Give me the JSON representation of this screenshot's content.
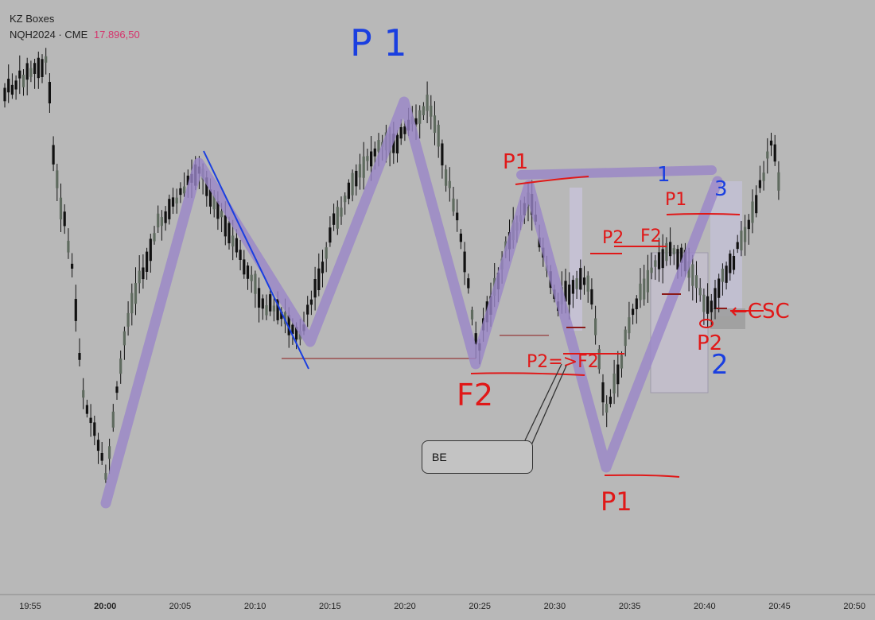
{
  "header": {
    "title": "KZ Boxes",
    "symbol": "NQH2024 · CME",
    "price": "17.896,50"
  },
  "annotations": {
    "p1_top": "P 1",
    "p1_a": "P1",
    "p1_b": "P1",
    "p1_bottom": "P1",
    "p2_a": "P2",
    "p2_b": "P2",
    "f2_a": "F2",
    "f2_b": "F2",
    "p2f2": "P2=>F2",
    "csc": "←CSC",
    "n1": "1",
    "n2": "2",
    "n3": "3",
    "be": "BE"
  },
  "colors": {
    "background": "#b8b8b8",
    "candle_body": "#5f6b5f",
    "wick": "#111111",
    "swing_path": "#9a86c8",
    "pen_red": "#e01818",
    "pen_blue": "#1a3fe0",
    "price_label": "#d6336c"
  },
  "chart_data": {
    "type": "candlestick",
    "title": "",
    "xlabel": "",
    "ylabel": "",
    "x_ticks": [
      "19:55",
      "20:00",
      "20:05",
      "20:10",
      "20:15",
      "20:20",
      "20:25",
      "20:30",
      "20:35",
      "20:40",
      "20:45",
      "20:50"
    ],
    "bold_tick": "20:00",
    "last_price": "17.896,50",
    "grid": false,
    "swing_path": [
      "low 20:00",
      "high 20:06",
      "low 20:14",
      "high 20:20",
      "low 20:25",
      "high 20:28",
      "low 20:33",
      "high 20:41"
    ]
  }
}
